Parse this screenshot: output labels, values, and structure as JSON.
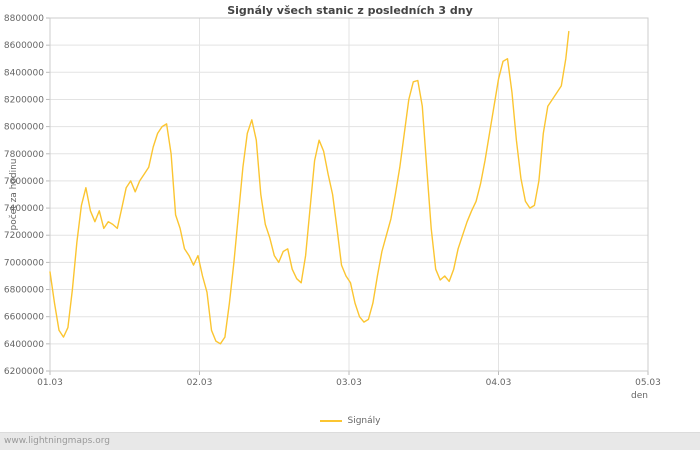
{
  "page": {
    "footer": "www.lightningmaps.org"
  },
  "chart_data": {
    "type": "line",
    "title": "Signály všech stanic z posledních 3 dny",
    "xlabel": "den",
    "ylabel": "počet za hodinu",
    "xlim": [
      1.0,
      5.0
    ],
    "ylim": [
      6200000,
      8800000
    ],
    "y_tick_step": 200000,
    "x_ticks": [
      1,
      2,
      3,
      4,
      5
    ],
    "x_tick_labels": [
      "01.03",
      "02.03",
      "03.03",
      "04.03",
      "05.03"
    ],
    "grid": true,
    "legend_position": "bottom",
    "colors": {
      "line": "#fbc531",
      "grid": "#e3e3e3",
      "plot_border": "#cccccc",
      "tick": "#bbbbbb",
      "text": "#666666",
      "footer_bg": "#e8e8e8"
    },
    "series": [
      {
        "name": "Signály",
        "color": "#fbc531",
        "x": [
          1.0,
          1.03,
          1.06,
          1.09,
          1.12,
          1.15,
          1.18,
          1.21,
          1.24,
          1.27,
          1.3,
          1.33,
          1.36,
          1.39,
          1.42,
          1.45,
          1.48,
          1.51,
          1.54,
          1.57,
          1.6,
          1.63,
          1.66,
          1.69,
          1.72,
          1.75,
          1.78,
          1.81,
          1.84,
          1.87,
          1.9,
          1.93,
          1.96,
          1.99,
          2.02,
          2.05,
          2.08,
          2.11,
          2.14,
          2.17,
          2.2,
          2.23,
          2.26,
          2.29,
          2.32,
          2.35,
          2.38,
          2.41,
          2.44,
          2.47,
          2.5,
          2.53,
          2.56,
          2.59,
          2.62,
          2.65,
          2.68,
          2.71,
          2.74,
          2.77,
          2.8,
          2.83,
          2.86,
          2.89,
          2.92,
          2.95,
          2.98,
          3.01,
          3.04,
          3.07,
          3.1,
          3.13,
          3.16,
          3.19,
          3.22,
          3.25,
          3.28,
          3.31,
          3.34,
          3.37,
          3.4,
          3.43,
          3.46,
          3.49,
          3.52,
          3.55,
          3.58,
          3.61,
          3.64,
          3.67,
          3.7,
          3.73,
          3.76,
          3.79,
          3.82,
          3.85,
          3.88,
          3.91,
          3.94,
          3.97,
          4.0,
          4.03,
          4.06,
          4.09,
          4.12,
          4.15,
          4.18,
          4.21,
          4.24,
          4.27,
          4.3,
          4.33,
          4.36,
          4.39,
          4.42,
          4.45,
          4.47
        ],
        "values": [
          6930000,
          6700000,
          6500000,
          6450000,
          6520000,
          6800000,
          7150000,
          7420000,
          7550000,
          7380000,
          7300000,
          7380000,
          7250000,
          7300000,
          7280000,
          7250000,
          7400000,
          7550000,
          7600000,
          7520000,
          7600000,
          7650000,
          7700000,
          7850000,
          7950000,
          8000000,
          8020000,
          7800000,
          7350000,
          7250000,
          7100000,
          7050000,
          6980000,
          7050000,
          6900000,
          6780000,
          6500000,
          6420000,
          6400000,
          6450000,
          6700000,
          7000000,
          7350000,
          7700000,
          7950000,
          8050000,
          7900000,
          7500000,
          7280000,
          7180000,
          7050000,
          7000000,
          7080000,
          7100000,
          6950000,
          6880000,
          6850000,
          7050000,
          7400000,
          7750000,
          7900000,
          7820000,
          7650000,
          7500000,
          7250000,
          6980000,
          6900000,
          6850000,
          6700000,
          6600000,
          6560000,
          6580000,
          6700000,
          6900000,
          7080000,
          7200000,
          7320000,
          7500000,
          7700000,
          7950000,
          8200000,
          8330000,
          8340000,
          8150000,
          7700000,
          7250000,
          6950000,
          6870000,
          6900000,
          6860000,
          6950000,
          7100000,
          7200000,
          7300000,
          7380000,
          7450000,
          7580000,
          7750000,
          7950000,
          8150000,
          8350000,
          8480000,
          8500000,
          8250000,
          7900000,
          7620000,
          7450000,
          7400000,
          7420000,
          7600000,
          7950000,
          8150000,
          8200000,
          8250000,
          8300000,
          8500000,
          8700000
        ]
      }
    ]
  }
}
